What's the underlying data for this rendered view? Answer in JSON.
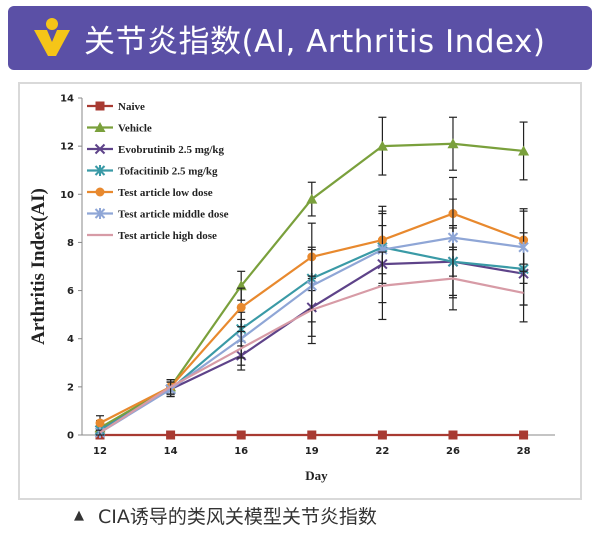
{
  "header": {
    "title": "关节炎指数(AI, Arthritis Index)",
    "background_color": "#5b50a6",
    "logo_icon": "yellow-v-dot-logo-icon"
  },
  "caption": {
    "marker": "▲",
    "text": "CIA诱导的类风关模型关节炎指数"
  },
  "chart_data": {
    "type": "line",
    "xlabel": "Day",
    "ylabel": "Arthritis Index(AI)",
    "categories": [
      "12",
      "14",
      "16",
      "19",
      "22",
      "26",
      "28"
    ],
    "ylim": [
      0,
      14
    ],
    "yticks": [
      0,
      2,
      4,
      6,
      8,
      10,
      12,
      14
    ],
    "grid": false,
    "legend_position": "top-left",
    "series": [
      {
        "name": "Naive",
        "color": "#a83a32",
        "marker": "square",
        "values": [
          0,
          0,
          0,
          0,
          0,
          0,
          0
        ],
        "errors": [
          0,
          0,
          0,
          0,
          0,
          0,
          0
        ]
      },
      {
        "name": "Vehicle",
        "color": "#7aa03c",
        "marker": "triangle",
        "values": [
          0.3,
          2.0,
          6.2,
          9.8,
          12.0,
          12.1,
          11.8
        ],
        "errors": [
          0.3,
          0.3,
          0.6,
          0.7,
          1.2,
          1.1,
          1.2
        ]
      },
      {
        "name": "Evobrutinib 2.5 mg/kg",
        "color": "#5e4389",
        "marker": "x",
        "values": [
          0.2,
          1.9,
          3.3,
          5.3,
          7.1,
          7.2,
          6.7
        ],
        "errors": [
          0.2,
          0.3,
          0.6,
          1.2,
          1.6,
          1.5,
          1.3
        ]
      },
      {
        "name": "Tofacitinib 2.5 mg/kg",
        "color": "#3a9aa6",
        "marker": "star",
        "values": [
          0.2,
          1.9,
          4.4,
          6.5,
          7.8,
          7.2,
          6.9
        ],
        "errors": [
          0.2,
          0.3,
          0.7,
          1.3,
          1.5,
          1.4,
          1.5
        ]
      },
      {
        "name": "Test article low dose",
        "color": "#e8892e",
        "marker": "circle",
        "values": [
          0.5,
          2.0,
          5.3,
          7.4,
          8.1,
          9.2,
          8.1
        ],
        "errors": [
          0.3,
          0.3,
          0.8,
          1.4,
          1.4,
          1.5,
          1.3
        ]
      },
      {
        "name": "Test article middle dose",
        "color": "#8fa6d6",
        "marker": "star",
        "values": [
          0.1,
          1.9,
          4.0,
          6.2,
          7.7,
          8.2,
          7.8
        ],
        "errors": [
          0.1,
          0.3,
          0.8,
          1.5,
          1.5,
          1.6,
          1.5
        ]
      },
      {
        "name": "Test article high dose",
        "color": "#d79ba6",
        "marker": "none",
        "values": [
          0.1,
          2.0,
          3.6,
          5.2,
          6.2,
          6.5,
          5.9
        ],
        "errors": [
          0.1,
          0.3,
          0.7,
          1.4,
          1.4,
          1.3,
          1.2
        ]
      }
    ]
  }
}
